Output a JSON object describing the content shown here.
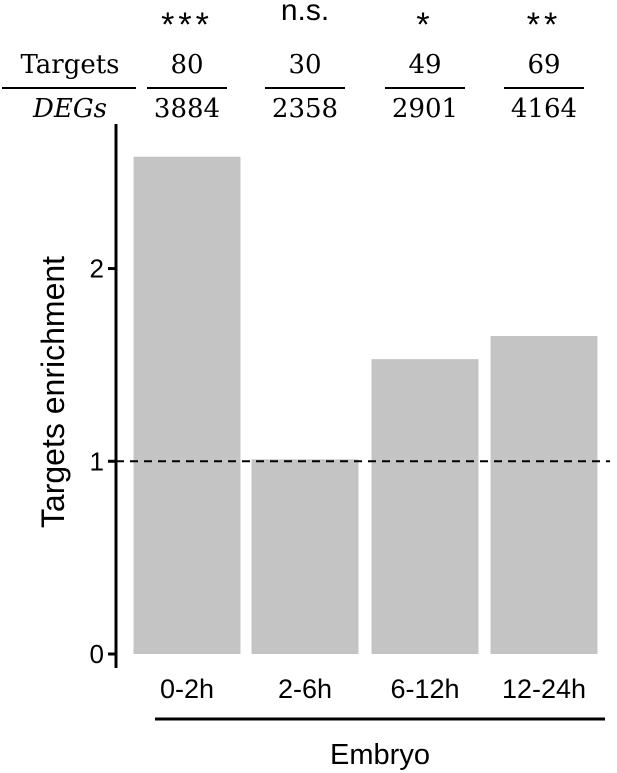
{
  "chart_data": {
    "type": "bar",
    "ylabel": "Targets enrichment",
    "xgroup_label": "Embryo",
    "categories": [
      "0-2h",
      "2-6h",
      "6-12h",
      "12-24h"
    ],
    "values": [
      2.58,
      1.01,
      1.53,
      1.65
    ],
    "ylim": [
      0,
      2.75
    ],
    "yticks": [
      0,
      1,
      2
    ],
    "reference_line": 1,
    "significance": [
      "***",
      "n.s.",
      "*",
      "**"
    ],
    "fraction_header": {
      "numerator_label": "Targets",
      "denominator_label": "DEGs"
    },
    "targets": [
      "80",
      "30",
      "49",
      "69"
    ],
    "degs": [
      "3884",
      "2358",
      "2901",
      "4164"
    ],
    "grid": false,
    "legend": "none",
    "colors": {
      "bar": "#c4c4c4",
      "axis": "#000000",
      "text": "#000000"
    }
  }
}
